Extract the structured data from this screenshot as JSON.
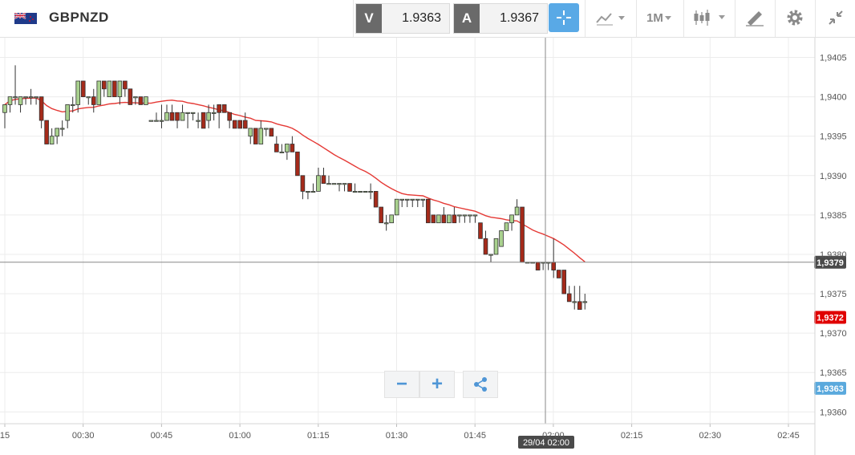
{
  "header": {
    "symbol": "GBPNZD",
    "bid_label": "V",
    "bid_value": "1.9363",
    "ask_label": "A",
    "ask_value": "1.9367",
    "timeframe": "1M",
    "icons": [
      "uk-nz-flag-icon",
      "crosshair-icon",
      "chart-type-icon",
      "candlestick-icon",
      "drawing-icon",
      "gear-icon",
      "collapse-icon"
    ]
  },
  "chart_data": {
    "type": "candlestick",
    "y_ticks": [
      "1,9405",
      "1,9400",
      "1,9395",
      "1,9390",
      "1,9385",
      "1,9380",
      "1,9375",
      "1,9370",
      "1,9365",
      "1,9360"
    ],
    "x_ticks": [
      "15",
      "00:30",
      "00:45",
      "01:00",
      "01:15",
      "01:30",
      "01:45",
      "02:00",
      "02:15",
      "02:30",
      "02:45"
    ],
    "crosshair_price": "1,9379",
    "crosshair_time": "29/04 02:00",
    "ma_last": "1,9372",
    "current_price": "1,9363",
    "ylim": [
      1.93585,
      1.94075
    ],
    "grid": true,
    "moving_average_color": "#e53935",
    "up_color": "#a9d18e",
    "down_color": "#a52a1a",
    "candles": [
      [
        1.9398,
        1.9399,
        1.9396,
        1.9399
      ],
      [
        1.9399,
        1.94,
        1.9398,
        1.94
      ],
      [
        1.94,
        1.9404,
        1.9399,
        1.94
      ],
      [
        1.9399,
        1.94,
        1.9398,
        1.94
      ],
      [
        1.94,
        1.94,
        1.9399,
        1.94
      ],
      [
        1.94,
        1.9401,
        1.9399,
        1.94
      ],
      [
        1.94,
        1.94,
        1.9399,
        1.94
      ],
      [
        1.94,
        1.94,
        1.9396,
        1.9397
      ],
      [
        1.9397,
        1.9397,
        1.9394,
        1.9394
      ],
      [
        1.9394,
        1.9396,
        1.9394,
        1.9395
      ],
      [
        1.9395,
        1.9396,
        1.9394,
        1.9396
      ],
      [
        1.9396,
        1.9397,
        1.9395,
        1.9396
      ],
      [
        1.9397,
        1.9399,
        1.9396,
        1.9399
      ],
      [
        1.9399,
        1.94,
        1.9398,
        1.9399
      ],
      [
        1.9399,
        1.9402,
        1.9398,
        1.9402
      ],
      [
        1.9402,
        1.9402,
        1.94,
        1.94
      ],
      [
        1.94,
        1.94,
        1.9399,
        1.94
      ],
      [
        1.94,
        1.9401,
        1.9398,
        1.9399
      ],
      [
        1.9399,
        1.9402,
        1.9399,
        1.9402
      ],
      [
        1.9402,
        1.9402,
        1.94,
        1.9401
      ],
      [
        1.94,
        1.9402,
        1.94,
        1.9402
      ],
      [
        1.9402,
        1.9402,
        1.94,
        1.94
      ],
      [
        1.94,
        1.9402,
        1.9399,
        1.9402
      ],
      [
        1.9402,
        1.9402,
        1.94,
        1.9401
      ],
      [
        1.9401,
        1.9401,
        1.9399,
        1.9399
      ],
      [
        1.94,
        1.94,
        1.9399,
        1.94
      ],
      [
        1.94,
        1.94,
        1.9399,
        1.9399
      ],
      [
        1.9399,
        1.94,
        1.9399,
        1.94
      ],
      [
        1.9397,
        1.9397,
        1.9397,
        1.9397
      ],
      [
        1.9397,
        1.9398,
        1.9397,
        1.9397
      ],
      [
        1.9397,
        1.9399,
        1.9396,
        1.9397
      ],
      [
        1.9397,
        1.9399,
        1.9397,
        1.9398
      ],
      [
        1.9398,
        1.9399,
        1.9397,
        1.9397
      ],
      [
        1.9398,
        1.9398,
        1.9396,
        1.9397
      ],
      [
        1.9397,
        1.9399,
        1.9397,
        1.9398
      ],
      [
        1.9398,
        1.9398,
        1.9396,
        1.9398
      ],
      [
        1.9398,
        1.9398,
        1.9397,
        1.9398
      ],
      [
        1.9397,
        1.9398,
        1.9396,
        1.9397
      ],
      [
        1.9398,
        1.9398,
        1.9396,
        1.9396
      ],
      [
        1.9397,
        1.9399,
        1.9396,
        1.9398
      ],
      [
        1.9398,
        1.9399,
        1.9397,
        1.9398
      ],
      [
        1.9399,
        1.9399,
        1.9396,
        1.9398
      ],
      [
        1.9399,
        1.9399,
        1.9398,
        1.9398
      ],
      [
        1.9398,
        1.9398,
        1.9396,
        1.9397
      ],
      [
        1.9397,
        1.9397,
        1.9396,
        1.9396
      ],
      [
        1.9397,
        1.9397,
        1.9396,
        1.9396
      ],
      [
        1.9397,
        1.9398,
        1.9396,
        1.9396
      ],
      [
        1.9395,
        1.9396,
        1.9394,
        1.9396
      ],
      [
        1.9396,
        1.9396,
        1.9394,
        1.9394
      ],
      [
        1.9394,
        1.9397,
        1.9394,
        1.9396
      ],
      [
        1.9396,
        1.9396,
        1.9395,
        1.9396
      ],
      [
        1.9396,
        1.9396,
        1.9395,
        1.9395
      ],
      [
        1.9394,
        1.9395,
        1.9393,
        1.9393
      ],
      [
        1.9393,
        1.9394,
        1.9393,
        1.9393
      ],
      [
        1.9393,
        1.9394,
        1.9392,
        1.9394
      ],
      [
        1.9394,
        1.9395,
        1.9393,
        1.9393
      ],
      [
        1.9393,
        1.9393,
        1.939,
        1.939
      ],
      [
        1.939,
        1.939,
        1.9387,
        1.9388
      ],
      [
        1.9388,
        1.9388,
        1.9387,
        1.9388
      ],
      [
        1.9388,
        1.9389,
        1.9388,
        1.9388
      ],
      [
        1.9388,
        1.9391,
        1.9388,
        1.939
      ],
      [
        1.939,
        1.9391,
        1.9389,
        1.9389
      ],
      [
        1.9389,
        1.939,
        1.9389,
        1.9389
      ],
      [
        1.9389,
        1.9389,
        1.9389,
        1.9389
      ],
      [
        1.9389,
        1.9389,
        1.9388,
        1.9389
      ],
      [
        1.9389,
        1.9389,
        1.9388,
        1.9389
      ],
      [
        1.9389,
        1.9389,
        1.9388,
        1.9388
      ],
      [
        1.9388,
        1.9389,
        1.9388,
        1.9388
      ],
      [
        1.9388,
        1.9388,
        1.9388,
        1.9388
      ],
      [
        1.9388,
        1.9388,
        1.9388,
        1.9388
      ],
      [
        1.9388,
        1.9389,
        1.9387,
        1.9388
      ],
      [
        1.9388,
        1.9388,
        1.9386,
        1.9386
      ],
      [
        1.9386,
        1.9386,
        1.9384,
        1.9384
      ],
      [
        1.9384,
        1.9385,
        1.9383,
        1.9384
      ],
      [
        1.9384,
        1.9385,
        1.9384,
        1.9385
      ],
      [
        1.9385,
        1.9387,
        1.9385,
        1.9387
      ],
      [
        1.9387,
        1.9387,
        1.9386,
        1.9387
      ],
      [
        1.9387,
        1.9387,
        1.9386,
        1.9387
      ],
      [
        1.9387,
        1.9387,
        1.9386,
        1.9387
      ],
      [
        1.9387,
        1.9387,
        1.9386,
        1.9387
      ],
      [
        1.9387,
        1.9387,
        1.9386,
        1.9387
      ],
      [
        1.9387,
        1.9387,
        1.9384,
        1.9384
      ],
      [
        1.9385,
        1.9385,
        1.9384,
        1.9384
      ],
      [
        1.9384,
        1.9385,
        1.9384,
        1.9385
      ],
      [
        1.9385,
        1.9386,
        1.9384,
        1.9384
      ],
      [
        1.9384,
        1.9385,
        1.9384,
        1.9385
      ],
      [
        1.9385,
        1.9386,
        1.9384,
        1.9384
      ],
      [
        1.9385,
        1.9385,
        1.9384,
        1.9385
      ],
      [
        1.9385,
        1.9385,
        1.9384,
        1.9385
      ],
      [
        1.9385,
        1.9385,
        1.9384,
        1.9385
      ],
      [
        1.9385,
        1.9385,
        1.9384,
        1.9385
      ],
      [
        1.9384,
        1.9384,
        1.9382,
        1.9382
      ],
      [
        1.9382,
        1.9383,
        1.938,
        1.938
      ],
      [
        1.938,
        1.938,
        1.9379,
        1.938
      ],
      [
        1.938,
        1.9382,
        1.938,
        1.9382
      ],
      [
        1.9381,
        1.9383,
        1.9381,
        1.9383
      ],
      [
        1.9383,
        1.9384,
        1.9383,
        1.9384
      ],
      [
        1.9384,
        1.9385,
        1.9383,
        1.9385
      ],
      [
        1.9385,
        1.9387,
        1.9385,
        1.9386
      ],
      [
        1.9386,
        1.9386,
        1.9379,
        1.9379
      ],
      [
        1.9379,
        1.9379,
        1.9379,
        1.9379
      ],
      [
        1.9379,
        1.9379,
        1.9379,
        1.9379
      ],
      [
        1.9379,
        1.9379,
        1.9378,
        1.9378
      ],
      [
        1.9379,
        1.9379,
        1.9378,
        1.9379
      ],
      [
        1.9379,
        1.9379,
        1.9378,
        1.9379
      ],
      [
        1.9379,
        1.9382,
        1.9377,
        1.9378
      ],
      [
        1.9378,
        1.9378,
        1.9377,
        1.9377
      ],
      [
        1.9378,
        1.9378,
        1.9375,
        1.9375
      ],
      [
        1.9375,
        1.9376,
        1.9374,
        1.9374
      ],
      [
        1.9374,
        1.9376,
        1.9373,
        1.9374
      ],
      [
        1.9374,
        1.9376,
        1.9373,
        1.9373
      ],
      [
        1.9374,
        1.9375,
        1.9373,
        1.9374
      ]
    ]
  },
  "zoom_controls": {
    "zoom_out": "−",
    "zoom_in": "+"
  }
}
